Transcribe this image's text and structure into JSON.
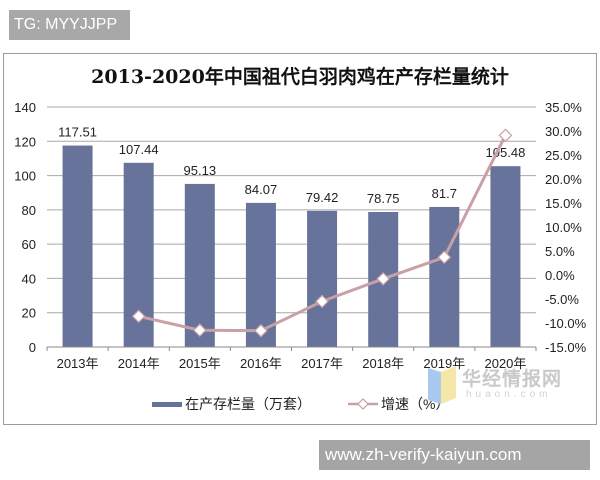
{
  "badges": {
    "top_left": "TG: MYYJJPP",
    "bottom_url": "www.zh-verify-kaiyun.com"
  },
  "watermark": {
    "name": "华经情报网",
    "domain": "huaon.com"
  },
  "chart_data": {
    "type": "bar+line",
    "title": "2013-2020年中国祖代白羽肉鸡在产存栏量统计",
    "categories": [
      "2013年",
      "2014年",
      "2015年",
      "2016年",
      "2017年",
      "2018年",
      "2019年",
      "2020年"
    ],
    "series": [
      {
        "name": "在产存栏量（万套）",
        "type": "bar",
        "axis": "left",
        "color": "#67739a",
        "values": [
          117.51,
          107.44,
          95.13,
          84.07,
          79.42,
          78.75,
          81.7,
          105.48
        ],
        "labels": [
          "117.51",
          "107.44",
          "95.13",
          "84.07",
          "79.42",
          "78.75",
          "81.7",
          "105.48"
        ]
      },
      {
        "name": "增速（%）",
        "type": "line",
        "axis": "right",
        "color": "#c9a0a6",
        "marker": "diamond",
        "values": [
          null,
          -8.6,
          -11.5,
          -11.6,
          -5.5,
          -0.8,
          3.7,
          29.1
        ]
      }
    ],
    "left_axis": {
      "ylim": [
        0,
        140
      ],
      "ticks": [
        "0",
        "20",
        "40",
        "60",
        "80",
        "100",
        "120",
        "140"
      ]
    },
    "right_axis": {
      "ylim": [
        -15,
        35
      ],
      "ticks": [
        "-15.0%",
        "-10.0%",
        "-5.0%",
        "0.0%",
        "5.0%",
        "10.0%",
        "15.0%",
        "20.0%",
        "25.0%",
        "30.0%",
        "35.0%"
      ]
    },
    "grid": true,
    "legend_position": "bottom",
    "legend": [
      "在产存栏量（万套）",
      "增速（%）"
    ]
  }
}
